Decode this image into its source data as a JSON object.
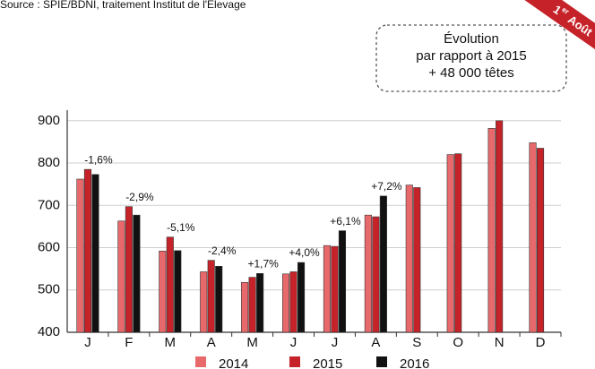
{
  "chart_data": {
    "type": "bar",
    "source": "Source : SPIE/BDNI, traitement Institut de l'Élevage",
    "badge": {
      "num": "1",
      "sup": "er",
      "text": "Août"
    },
    "box": [
      "Évolution",
      "par rapport à 2015",
      "+ 48 000 têtes"
    ],
    "categories": [
      "J",
      "F",
      "M",
      "A",
      "M",
      "J",
      "J",
      "A",
      "S",
      "O",
      "N",
      "D"
    ],
    "series": [
      {
        "name": "2014",
        "color": "#e8696b",
        "values": [
          762,
          663,
          592,
          543,
          518,
          538,
          605,
          677,
          748,
          820,
          882,
          848
        ]
      },
      {
        "name": "2015",
        "color": "#c62229",
        "values": [
          785,
          697,
          625,
          570,
          530,
          543,
          603,
          673,
          742,
          822,
          900,
          835
        ]
      },
      {
        "name": "2016",
        "color": "#111111",
        "values": [
          773,
          677,
          593,
          556,
          539,
          565,
          640,
          722,
          null,
          null,
          null,
          null
        ]
      }
    ],
    "annotations": [
      "-1,6%",
      "-2,9%",
      "-5,1%",
      "-2,4%",
      "+1,7%",
      "+4,0%",
      "+6,1%",
      "+7,2%"
    ],
    "ylim": [
      400,
      925
    ],
    "yticks": [
      400,
      500,
      600,
      700,
      800,
      900
    ],
    "grid": true
  }
}
